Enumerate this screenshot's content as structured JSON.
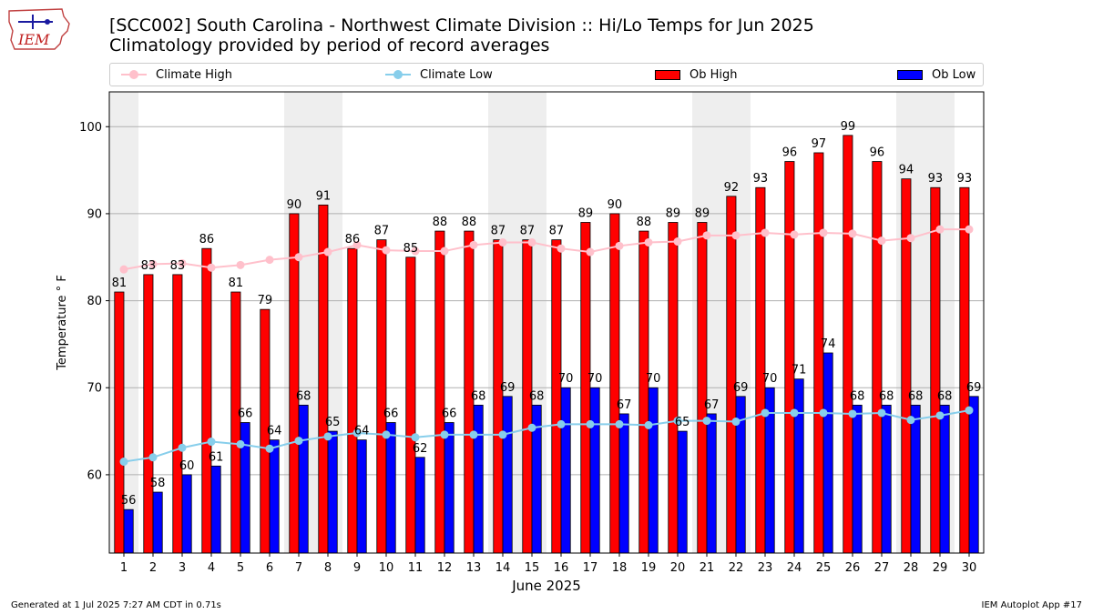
{
  "header": {
    "title_line1": "[SCC002] South Carolina - Northwest Climate Division :: Hi/Lo Temps for Jun 2025",
    "title_line2": "Climatology provided by period of record averages",
    "logo_text": "IEM"
  },
  "footer": {
    "left": "Generated at 1 Jul 2025 7:27 AM CDT in 0.71s",
    "right": "IEM Autoplot App #17"
  },
  "colors": {
    "ob_high": "#ff0000",
    "ob_low": "#0000ff",
    "climate_high": "#ffc0cb",
    "climate_low": "#87ceeb",
    "weekend_shade": "#eeeeee",
    "grid": "#b0b0b0"
  },
  "chart_data": {
    "type": "bar",
    "title": "[SCC002] South Carolina - Northwest Climate Division :: Hi/Lo Temps for Jun 2025",
    "subtitle": "Climatology provided by period of record averages",
    "xlabel": "June 2025",
    "ylabel": "Temperature ° F",
    "ylim": [
      51,
      104
    ],
    "yticks": [
      60,
      70,
      80,
      90,
      100
    ],
    "grid": true,
    "legend_placement": "top",
    "categories": [
      "1",
      "2",
      "3",
      "4",
      "5",
      "6",
      "7",
      "8",
      "9",
      "10",
      "11",
      "12",
      "13",
      "14",
      "15",
      "16",
      "17",
      "18",
      "19",
      "20",
      "21",
      "22",
      "23",
      "24",
      "25",
      "26",
      "27",
      "28",
      "29",
      "30"
    ],
    "shaded_days": [
      1,
      7,
      8,
      14,
      15,
      21,
      22,
      28,
      29
    ],
    "series": [
      {
        "name": "Climate High",
        "kind": "line",
        "color": "#ffc0cb",
        "values": [
          83.6,
          84.2,
          84.3,
          83.8,
          84.1,
          84.7,
          85.0,
          85.6,
          86.4,
          85.8,
          85.7,
          85.7,
          86.4,
          86.7,
          86.7,
          86.0,
          85.6,
          86.3,
          86.7,
          86.8,
          87.5,
          87.5,
          87.8,
          87.6,
          87.8,
          87.7,
          86.9,
          87.2,
          88.2,
          88.2
        ]
      },
      {
        "name": "Climate Low",
        "kind": "line",
        "color": "#87ceeb",
        "values": [
          61.5,
          62.0,
          63.1,
          63.8,
          63.5,
          63.0,
          63.9,
          64.4,
          64.8,
          64.6,
          64.3,
          64.6,
          64.6,
          64.6,
          65.4,
          65.8,
          65.8,
          65.8,
          65.7,
          66.2,
          66.2,
          66.1,
          67.1,
          67.1,
          67.1,
          67.0,
          67.1,
          66.3,
          66.8,
          67.4
        ]
      },
      {
        "name": "Ob High",
        "kind": "bar",
        "color": "#ff0000",
        "values": [
          81,
          83,
          83,
          86,
          81,
          79,
          90,
          91,
          86,
          87,
          85,
          88,
          88,
          87,
          87,
          87,
          89,
          90,
          88,
          89,
          89,
          92,
          93,
          96,
          97,
          99,
          96,
          94,
          93,
          93
        ]
      },
      {
        "name": "Ob Low",
        "kind": "bar",
        "color": "#0000ff",
        "values": [
          56,
          58,
          60,
          61,
          66,
          64,
          68,
          65,
          64,
          66,
          62,
          66,
          68,
          69,
          68,
          70,
          70,
          67,
          70,
          65,
          67,
          69,
          70,
          71,
          74,
          68,
          68,
          68,
          68,
          69
        ]
      }
    ]
  }
}
